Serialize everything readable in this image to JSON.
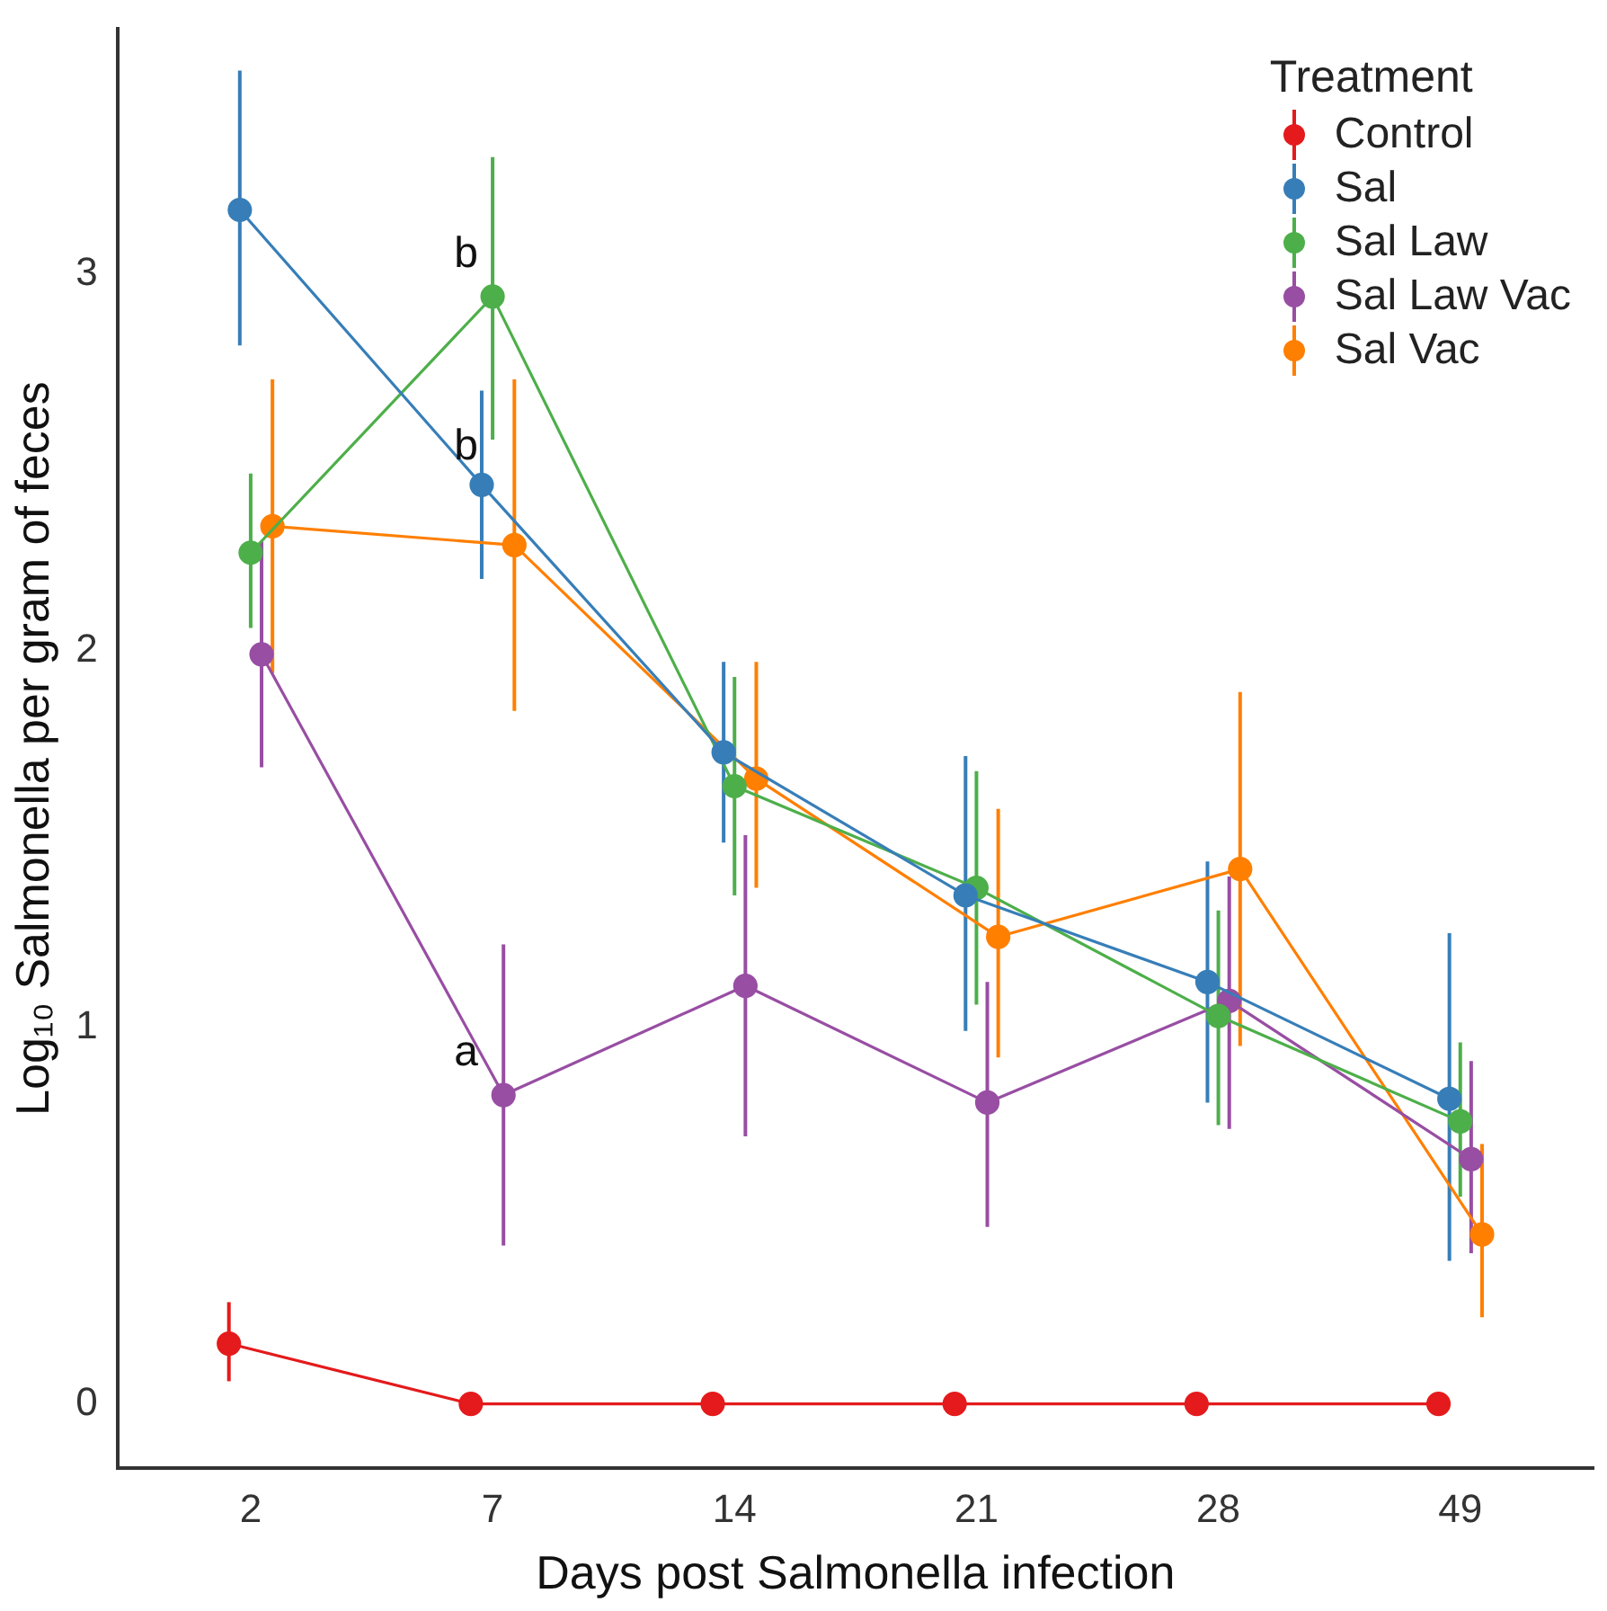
{
  "chart_data": {
    "type": "line",
    "xlabel": "Days post Salmonella infection",
    "ylabel": "Log₁₀ Salmonella per gram of feces",
    "legend_title": "Treatment",
    "legend": "top right",
    "marker": "circle",
    "grid": false,
    "categories": [
      "2",
      "7",
      "14",
      "21",
      "28",
      "49"
    ],
    "ylim": [
      -0.17,
      3.65
    ],
    "yticks": [
      0,
      1,
      2,
      3
    ],
    "series": [
      {
        "name": "Control",
        "color": "#e41a1c",
        "values": [
          0.16,
          0,
          0,
          0,
          0,
          0
        ],
        "errors": [
          [
            0.06,
            0.27
          ],
          null,
          null,
          null,
          null,
          null
        ]
      },
      {
        "name": "Sal",
        "color": "#377eb8",
        "values": [
          3.17,
          2.44,
          1.73,
          1.35,
          1.12,
          0.81
        ],
        "errors": [
          [
            2.81,
            3.54
          ],
          [
            2.19,
            2.69
          ],
          [
            1.49,
            1.97
          ],
          [
            0.99,
            1.72
          ],
          [
            0.8,
            1.44
          ],
          [
            0.38,
            1.25
          ]
        ]
      },
      {
        "name": "Sal Law",
        "color": "#4daf4a",
        "values": [
          2.26,
          2.94,
          1.64,
          1.37,
          1.03,
          0.75
        ],
        "errors": [
          [
            2.06,
            2.47
          ],
          [
            2.56,
            3.31
          ],
          [
            1.35,
            1.93
          ],
          [
            1.06,
            1.68
          ],
          [
            0.74,
            1.31
          ],
          [
            0.55,
            0.96
          ]
        ]
      },
      {
        "name": "Sal Law Vac",
        "color": "#984ea3",
        "values": [
          1.99,
          0.82,
          1.11,
          0.8,
          1.07,
          0.65
        ],
        "errors": [
          [
            1.69,
            2.29
          ],
          [
            0.42,
            1.22
          ],
          [
            0.71,
            1.51
          ],
          [
            0.47,
            1.12
          ],
          [
            0.73,
            1.4
          ],
          [
            0.4,
            0.91
          ]
        ]
      },
      {
        "name": "Sal Vac",
        "color": "#ff7f00",
        "values": [
          2.33,
          2.28,
          1.66,
          1.24,
          1.42,
          0.45
        ],
        "errors": [
          [
            1.94,
            2.72
          ],
          [
            1.84,
            2.72
          ],
          [
            1.37,
            1.97
          ],
          [
            0.92,
            1.58
          ],
          [
            0.95,
            1.89
          ],
          [
            0.23,
            0.69
          ]
        ]
      }
    ],
    "annotations": [
      {
        "text": "b",
        "x": "7",
        "y": 3.05
      },
      {
        "text": "b",
        "x": "7",
        "y": 2.54
      },
      {
        "text": "a",
        "x": "7",
        "y": 0.93
      }
    ]
  }
}
